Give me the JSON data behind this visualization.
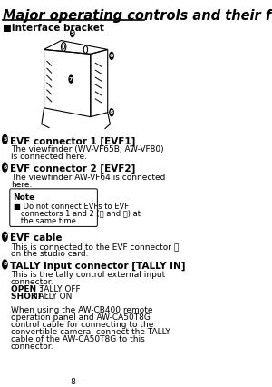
{
  "title": "Major operating controls and their functions",
  "section": "■Interface bracket",
  "items": [
    {
      "num": "5",
      "heading": "EVF connector 1 [EVF1]",
      "body": "The viewfinder (WV-VF65B, AW-VF80)\nis connected here."
    },
    {
      "num": "6",
      "heading": "EVF connector 2 [EVF2]",
      "body": "The viewfinder AW-VF64 is connected\nhere."
    },
    {
      "num": "7",
      "heading": "EVF cable",
      "body": "This is connected to the EVF connector ⓡ\non the studio card."
    },
    {
      "num": "8",
      "heading": "TALLY input connector [TALLY IN]",
      "body": "This is the tally control external input\nconnector.\nOPEN :   TALLY OFF\nSHORT : TALLY ON\n\nWhen using the AW-CB400 remote\noperation panel and AW-CA50T8G\ncontrol cable for connecting to the\nconvertible camera, connect the TALLY\ncable of the AW-CA50T8G to this\nconnector."
    }
  ],
  "note_title": "Note",
  "note_body": "Do not connect EVFs to EVF\nconnectors 1 and 2 (ⓤ and ⓥ) at\nthe same time.",
  "page_num": "- 8 -",
  "bg_color": "#ffffff",
  "text_color": "#000000",
  "title_color": "#000000"
}
